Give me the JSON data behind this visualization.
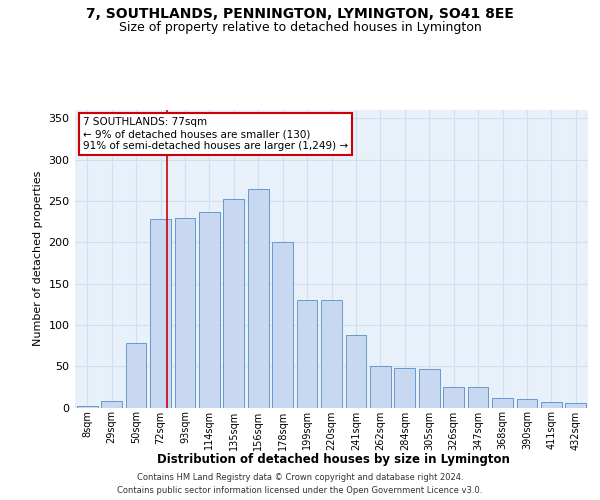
{
  "title1": "7, SOUTHLANDS, PENNINGTON, LYMINGTON, SO41 8EE",
  "title2": "Size of property relative to detached houses in Lymington",
  "xlabel": "Distribution of detached houses by size in Lymington",
  "ylabel": "Number of detached properties",
  "categories": [
    "8sqm",
    "29sqm",
    "50sqm",
    "72sqm",
    "93sqm",
    "114sqm",
    "135sqm",
    "156sqm",
    "178sqm",
    "199sqm",
    "220sqm",
    "241sqm",
    "262sqm",
    "284sqm",
    "305sqm",
    "326sqm",
    "347sqm",
    "368sqm",
    "390sqm",
    "411sqm",
    "432sqm"
  ],
  "bar_heights": [
    2,
    8,
    78,
    228,
    229,
    236,
    252,
    265,
    200,
    130,
    130,
    88,
    50,
    48,
    46,
    25,
    25,
    11,
    10,
    7,
    5
  ],
  "bar_color": "#c8d8f0",
  "bar_edge_color": "#6699cc",
  "annotation_text": "7 SOUTHLANDS: 77sqm\n← 9% of detached houses are smaller (130)\n91% of semi-detached houses are larger (1,249) →",
  "annotation_border_color": "#cc0000",
  "redline_x": 3.25,
  "grid_color": "#d0dff0",
  "footer": "Contains HM Land Registry data © Crown copyright and database right 2024.\nContains public sector information licensed under the Open Government Licence v3.0.",
  "ylim": [
    0,
    360
  ],
  "yticks": [
    0,
    50,
    100,
    150,
    200,
    250,
    300,
    350
  ],
  "bg_color": "#e8f0fa",
  "fig_bg": "#ffffff"
}
